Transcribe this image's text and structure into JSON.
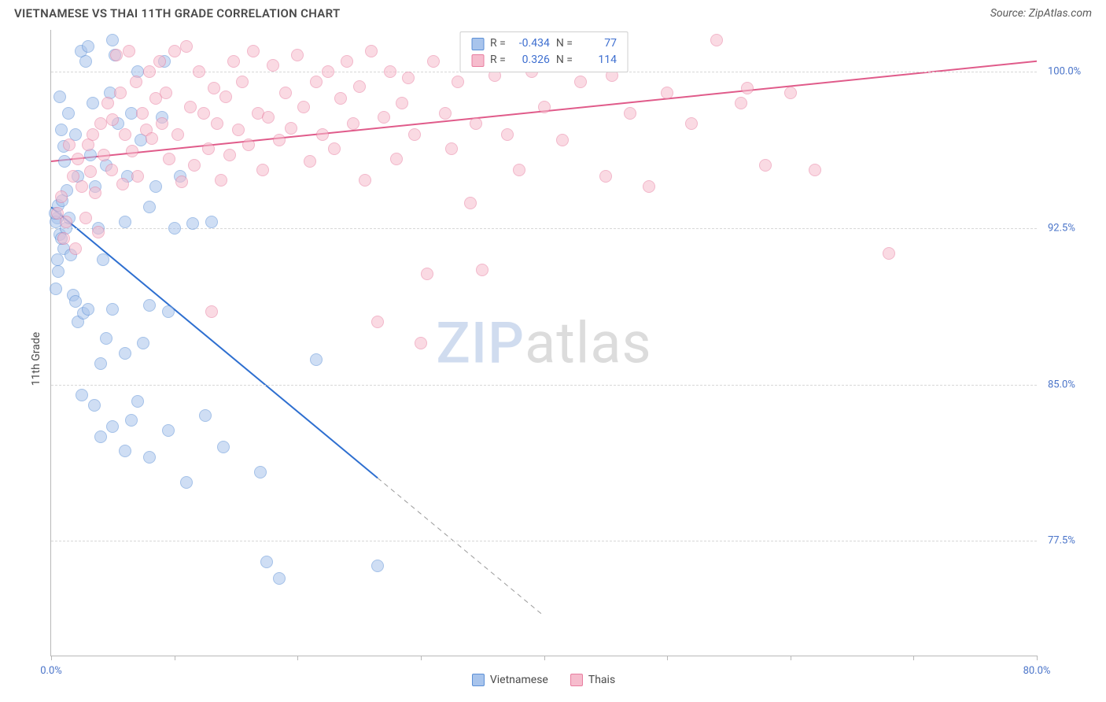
{
  "header": {
    "title": "VIETNAMESE VS THAI 11TH GRADE CORRELATION CHART",
    "source_prefix": "Source: ",
    "source_name": "ZipAtlas.com"
  },
  "chart": {
    "type": "scatter",
    "ylabel": "11th Grade",
    "xlim": [
      0,
      80
    ],
    "ylim": [
      72,
      102
    ],
    "ytick_values": [
      77.5,
      85.0,
      92.5,
      100.0
    ],
    "ytick_labels": [
      "77.5%",
      "85.0%",
      "92.5%",
      "100.0%"
    ],
    "xtick_values": [
      0,
      10,
      20,
      30,
      40,
      50,
      60,
      70,
      80
    ],
    "xtick_labels_shown": {
      "0": "0.0%",
      "80": "80.0%"
    },
    "grid_color": "#d8d8d8",
    "axis_color": "#b8b8b8",
    "background_color": "#ffffff",
    "label_fontsize": 14,
    "tick_fontsize": 13,
    "tick_label_color": "#4a74c9",
    "marker_radius": 8,
    "marker_opacity": 0.55,
    "marker_border_width": 1.2,
    "watermark": {
      "zip": "ZIP",
      "atlas": "atlas"
    },
    "series": [
      {
        "name": "Vietnamese",
        "color_fill": "#a8c4ec",
        "color_border": "#5b8fd6",
        "trend": {
          "x1": 0,
          "y1": 93.5,
          "x2": 30,
          "y2": 78.8,
          "color": "#2e6fd0",
          "width": 2,
          "dash_after_x": 26.5
        },
        "R": "-0.434",
        "N": "77",
        "points": [
          [
            0.5,
            93.0
          ],
          [
            0.7,
            92.2
          ],
          [
            0.4,
            92.8
          ],
          [
            1.0,
            91.5
          ],
          [
            0.3,
            93.2
          ],
          [
            0.6,
            93.6
          ],
          [
            0.8,
            92.0
          ],
          [
            1.2,
            92.5
          ],
          [
            0.5,
            91.0
          ],
          [
            0.9,
            93.8
          ],
          [
            1.1,
            95.7
          ],
          [
            0.8,
            97.2
          ],
          [
            1.4,
            98.0
          ],
          [
            0.7,
            98.8
          ],
          [
            1.0,
            96.4
          ],
          [
            1.3,
            94.3
          ],
          [
            0.6,
            90.4
          ],
          [
            0.4,
            89.6
          ],
          [
            1.5,
            93.0
          ],
          [
            1.6,
            91.2
          ],
          [
            2.0,
            97.0
          ],
          [
            2.2,
            95.0
          ],
          [
            2.4,
            101.0
          ],
          [
            2.8,
            100.5
          ],
          [
            3.0,
            101.2
          ],
          [
            3.2,
            96.0
          ],
          [
            3.4,
            98.5
          ],
          [
            3.6,
            94.5
          ],
          [
            3.8,
            92.5
          ],
          [
            1.8,
            89.3
          ],
          [
            2.0,
            89.0
          ],
          [
            2.2,
            88.0
          ],
          [
            2.6,
            88.4
          ],
          [
            3.0,
            88.6
          ],
          [
            4.2,
            91.0
          ],
          [
            4.5,
            95.5
          ],
          [
            4.8,
            99.0
          ],
          [
            5.0,
            101.5
          ],
          [
            5.4,
            97.5
          ],
          [
            5.2,
            100.8
          ],
          [
            6.0,
            92.8
          ],
          [
            6.2,
            95.0
          ],
          [
            6.5,
            98.0
          ],
          [
            7.0,
            100.0
          ],
          [
            7.3,
            96.7
          ],
          [
            8.0,
            93.5
          ],
          [
            8.5,
            94.5
          ],
          [
            9.0,
            97.8
          ],
          [
            9.2,
            100.5
          ],
          [
            10.5,
            95.0
          ],
          [
            10.0,
            92.5
          ],
          [
            11.5,
            92.7
          ],
          [
            4.0,
            86.0
          ],
          [
            4.5,
            87.2
          ],
          [
            5.0,
            88.6
          ],
          [
            6.0,
            86.5
          ],
          [
            6.5,
            83.3
          ],
          [
            7.5,
            87.0
          ],
          [
            8.0,
            88.8
          ],
          [
            9.5,
            88.5
          ],
          [
            2.5,
            84.5
          ],
          [
            3.5,
            84.0
          ],
          [
            4.0,
            82.5
          ],
          [
            5.0,
            83.0
          ],
          [
            6.0,
            81.8
          ],
          [
            7.0,
            84.2
          ],
          [
            8.0,
            81.5
          ],
          [
            9.5,
            82.8
          ],
          [
            11.0,
            80.3
          ],
          [
            12.5,
            83.5
          ],
          [
            14.0,
            82.0
          ],
          [
            17.0,
            80.8
          ],
          [
            17.5,
            76.5
          ],
          [
            18.5,
            75.7
          ],
          [
            21.5,
            86.2
          ],
          [
            26.5,
            76.3
          ],
          [
            13.0,
            92.8
          ]
        ]
      },
      {
        "name": "Thais",
        "color_fill": "#f6bccd",
        "color_border": "#e87ea0",
        "trend": {
          "x1": 0,
          "y1": 95.7,
          "x2": 80,
          "y2": 100.5,
          "color": "#e05b8a",
          "width": 2
        },
        "R": "0.326",
        "N": "114",
        "points": [
          [
            0.5,
            93.2
          ],
          [
            0.8,
            94.0
          ],
          [
            1.0,
            92.0
          ],
          [
            1.2,
            92.8
          ],
          [
            1.5,
            96.5
          ],
          [
            1.8,
            95.0
          ],
          [
            2.0,
            91.5
          ],
          [
            2.2,
            95.8
          ],
          [
            2.5,
            94.5
          ],
          [
            2.8,
            93.0
          ],
          [
            3.0,
            96.5
          ],
          [
            3.2,
            95.2
          ],
          [
            3.4,
            97.0
          ],
          [
            3.6,
            94.2
          ],
          [
            3.8,
            92.3
          ],
          [
            4.0,
            97.5
          ],
          [
            4.3,
            96.0
          ],
          [
            4.6,
            98.5
          ],
          [
            4.9,
            95.3
          ],
          [
            5.0,
            97.7
          ],
          [
            5.3,
            100.8
          ],
          [
            5.6,
            99.0
          ],
          [
            5.8,
            94.6
          ],
          [
            6.0,
            97.0
          ],
          [
            6.3,
            101.0
          ],
          [
            6.6,
            96.2
          ],
          [
            6.9,
            99.5
          ],
          [
            7.0,
            95.0
          ],
          [
            7.4,
            98.0
          ],
          [
            7.7,
            97.2
          ],
          [
            8.0,
            100.0
          ],
          [
            8.2,
            96.8
          ],
          [
            8.5,
            98.7
          ],
          [
            8.8,
            100.5
          ],
          [
            9.0,
            97.5
          ],
          [
            9.3,
            99.0
          ],
          [
            9.6,
            95.8
          ],
          [
            10.0,
            101.0
          ],
          [
            10.3,
            97.0
          ],
          [
            10.6,
            94.7
          ],
          [
            11.0,
            101.2
          ],
          [
            11.3,
            98.3
          ],
          [
            11.6,
            95.5
          ],
          [
            12.0,
            100.0
          ],
          [
            12.4,
            98.0
          ],
          [
            12.8,
            96.3
          ],
          [
            13.0,
            88.5
          ],
          [
            13.2,
            99.2
          ],
          [
            13.5,
            97.5
          ],
          [
            13.8,
            94.8
          ],
          [
            14.2,
            98.8
          ],
          [
            14.5,
            96.0
          ],
          [
            14.8,
            100.5
          ],
          [
            15.2,
            97.2
          ],
          [
            15.5,
            99.5
          ],
          [
            16.0,
            96.5
          ],
          [
            16.4,
            101.0
          ],
          [
            16.8,
            98.0
          ],
          [
            17.2,
            95.3
          ],
          [
            17.6,
            97.8
          ],
          [
            18.0,
            100.3
          ],
          [
            18.5,
            96.7
          ],
          [
            19.0,
            99.0
          ],
          [
            19.5,
            97.3
          ],
          [
            20.0,
            100.8
          ],
          [
            20.5,
            98.3
          ],
          [
            21.0,
            95.7
          ],
          [
            21.5,
            99.5
          ],
          [
            22.0,
            97.0
          ],
          [
            22.5,
            100.0
          ],
          [
            23.0,
            96.3
          ],
          [
            23.5,
            98.7
          ],
          [
            24.0,
            100.5
          ],
          [
            24.5,
            97.5
          ],
          [
            25.0,
            99.3
          ],
          [
            25.5,
            94.8
          ],
          [
            26.0,
            101.0
          ],
          [
            26.5,
            88.0
          ],
          [
            27.0,
            97.8
          ],
          [
            27.5,
            100.0
          ],
          [
            28.0,
            95.8
          ],
          [
            28.5,
            98.5
          ],
          [
            29.0,
            99.7
          ],
          [
            29.5,
            97.0
          ],
          [
            30.0,
            87.0
          ],
          [
            30.5,
            90.3
          ],
          [
            31.0,
            100.5
          ],
          [
            32.0,
            98.0
          ],
          [
            32.5,
            96.3
          ],
          [
            33.0,
            99.5
          ],
          [
            34.0,
            93.7
          ],
          [
            34.5,
            97.5
          ],
          [
            35.0,
            90.5
          ],
          [
            36.0,
            99.8
          ],
          [
            37.0,
            97.0
          ],
          [
            38.0,
            95.3
          ],
          [
            39.0,
            100.0
          ],
          [
            40.0,
            98.3
          ],
          [
            41.5,
            96.7
          ],
          [
            43.0,
            99.5
          ],
          [
            45.0,
            95.0
          ],
          [
            46.0,
            101.0
          ],
          [
            47.0,
            98.0
          ],
          [
            48.5,
            94.5
          ],
          [
            50.0,
            99.0
          ],
          [
            52.0,
            97.5
          ],
          [
            54.0,
            101.5
          ],
          [
            56.0,
            98.5
          ],
          [
            58.0,
            95.5
          ],
          [
            60.0,
            99.0
          ],
          [
            62.0,
            95.3
          ],
          [
            56.5,
            99.2
          ],
          [
            68.0,
            91.3
          ],
          [
            45.5,
            99.8
          ]
        ]
      }
    ],
    "legend": {
      "items": [
        {
          "label": "Vietnamese",
          "fill": "#a8c4ec",
          "border": "#5b8fd6"
        },
        {
          "label": "Thais",
          "fill": "#f6bccd",
          "border": "#e87ea0"
        }
      ]
    },
    "stats_labels": {
      "r": "R =",
      "n": "N ="
    }
  }
}
